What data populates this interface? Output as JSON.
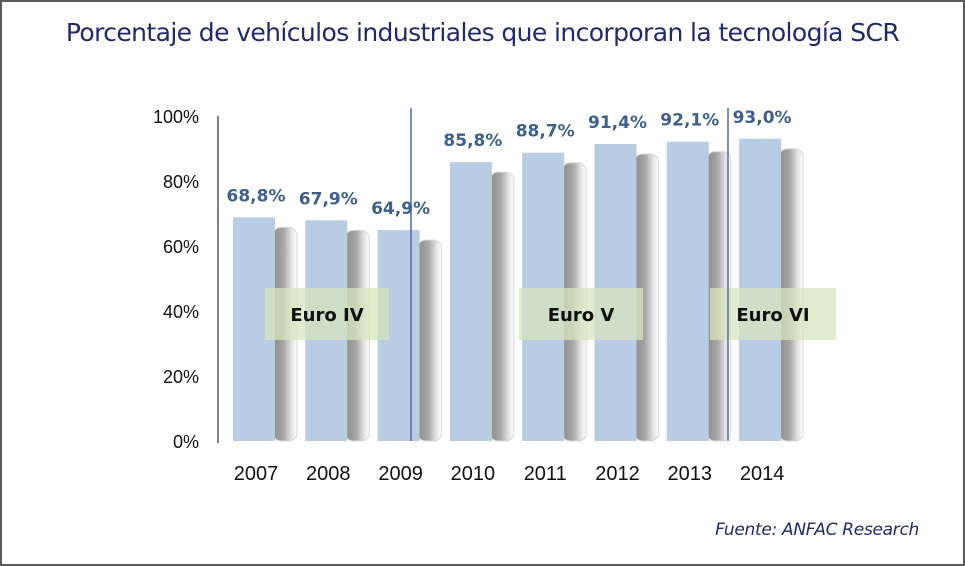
{
  "title": "Porcentaje de vehículos industriales que incorporan la tecnología SCR",
  "source": "Fuente: ANFAC Research",
  "colors": {
    "title": "#1f2a6b",
    "bar": "#b8cce4",
    "data_label": "#3d5f8e",
    "band": "#d7e4bd",
    "separator": "#4f6fa3",
    "axis": "#808080"
  },
  "chart_data": {
    "type": "bar",
    "title": "Porcentaje de vehículos industriales que incorporan la tecnología SCR",
    "xlabel": "",
    "ylabel": "",
    "categories": [
      "2007",
      "2008",
      "2009",
      "2010",
      "2011",
      "2012",
      "2013",
      "2014"
    ],
    "values": [
      68.8,
      67.9,
      64.9,
      85.8,
      88.7,
      91.4,
      92.1,
      93.0
    ],
    "data_labels": [
      "68,8%",
      "67,9%",
      "64,9%",
      "85,8%",
      "88,7%",
      "91,4%",
      "92,1%",
      "93,0%"
    ],
    "ylim": [
      0,
      100
    ],
    "yticks": [
      "0%",
      "20%",
      "40%",
      "60%",
      "80%",
      "100%"
    ],
    "ytick_values": [
      0,
      20,
      40,
      60,
      80,
      100
    ],
    "grid": false,
    "legend": null,
    "annotations": [
      {
        "text": "Euro IV",
        "from_category": "2007",
        "to_category": "2009"
      },
      {
        "text": "Euro V",
        "from_category": "2010",
        "to_category": "2013"
      },
      {
        "text": "Euro VI",
        "from_category": "2013",
        "to_category": "2014"
      }
    ],
    "separators_after": [
      "2009",
      "2013"
    ]
  }
}
